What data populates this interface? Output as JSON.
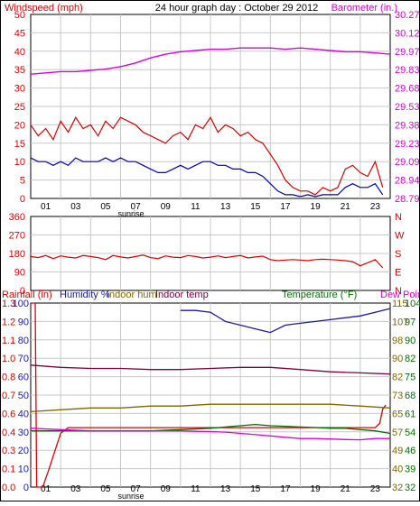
{
  "colors": {
    "windspeed": "#dd0000",
    "windgust": "#0000bb",
    "barometer": "#dd00dd",
    "direction": "#dd0000",
    "rainfall": "#dd0000",
    "humidity": "#1a1aa0",
    "indoor_hum": "#806600",
    "indoor_temp": "#800040",
    "temperature": "#007000",
    "dew_point": "#dd00dd",
    "grid": "#c8c8c8",
    "axis": "#000000"
  },
  "chart_data": [
    {
      "type": "line",
      "title": "24 hour graph day : October 29 2012",
      "ylabel": "Windspeed (mph)",
      "y2label": "Barometer (in.)",
      "ylim": [
        0,
        50
      ],
      "y2lim": [
        28.79,
        30.27
      ],
      "yticks": [
        "0",
        "5",
        "10",
        "15",
        "20",
        "25",
        "30",
        "35",
        "40",
        "45",
        "50"
      ],
      "y2ticks": [
        "28.79",
        "28.94",
        "29.09",
        "29.23",
        "29.38",
        "29.53",
        "29.68",
        "29.83",
        "29.97",
        "30.12",
        "30.27"
      ],
      "xticks": [
        "01",
        "03",
        "05",
        "07",
        "09",
        "11",
        "13",
        "15",
        "17",
        "19",
        "21",
        "23"
      ],
      "annotation": "sunrise",
      "grid": true,
      "series": [
        {
          "name": "Windspeed (mph)",
          "axis": "left",
          "x": [
            0,
            0.5,
            1,
            1.5,
            2,
            2.5,
            3,
            3.5,
            4,
            4.5,
            5,
            5.5,
            6,
            6.5,
            7,
            7.5,
            8,
            8.5,
            9,
            9.5,
            10,
            10.5,
            11,
            11.5,
            12,
            12.5,
            13,
            13.5,
            14,
            14.5,
            15,
            15.5,
            16,
            16.5,
            17,
            17.5,
            18,
            18.5,
            19,
            19.5,
            20,
            20.5,
            21,
            21.5,
            22,
            22.5,
            23,
            23.5
          ],
          "values": [
            20,
            17,
            19,
            16,
            21,
            18,
            22,
            19,
            20,
            17,
            21,
            19,
            22,
            21,
            20,
            18,
            17,
            16,
            15,
            17,
            18,
            16,
            20,
            19,
            22,
            18,
            20,
            19,
            17,
            18,
            16,
            15,
            12,
            9,
            5,
            3,
            2,
            2,
            1,
            3,
            2,
            3,
            8,
            9,
            7,
            6,
            10,
            3
          ]
        },
        {
          "name": "Wind gust",
          "axis": "left",
          "x": [
            0,
            0.5,
            1,
            1.5,
            2,
            2.5,
            3,
            3.5,
            4,
            4.5,
            5,
            5.5,
            6,
            6.5,
            7,
            7.5,
            8,
            8.5,
            9,
            9.5,
            10,
            10.5,
            11,
            11.5,
            12,
            12.5,
            13,
            13.5,
            14,
            14.5,
            15,
            15.5,
            16,
            16.5,
            17,
            17.5,
            18,
            18.5,
            19,
            19.5,
            20,
            20.5,
            21,
            21.5,
            22,
            22.5,
            23,
            23.5
          ],
          "values": [
            11,
            10,
            10,
            9,
            10,
            9,
            11,
            10,
            10,
            10,
            11,
            10,
            11,
            10,
            10,
            9,
            8,
            7,
            7,
            8,
            9,
            8,
            9,
            10,
            10,
            9,
            9,
            8,
            8,
            7,
            7,
            6,
            4,
            2,
            1,
            1,
            0.5,
            1,
            0.5,
            1,
            1,
            1,
            3,
            4,
            3,
            3,
            4,
            1
          ]
        },
        {
          "name": "Barometer (in.)",
          "axis": "right",
          "x": [
            0,
            1,
            2,
            3,
            4,
            5,
            6,
            7,
            8,
            9,
            10,
            11,
            12,
            13,
            14,
            15,
            16,
            17,
            18,
            19,
            20,
            21,
            22,
            23,
            24
          ],
          "values": [
            29.79,
            29.8,
            29.81,
            29.81,
            29.82,
            29.83,
            29.85,
            29.88,
            29.92,
            29.95,
            29.97,
            29.98,
            29.99,
            29.99,
            30.0,
            30.0,
            30.0,
            29.99,
            30.0,
            29.99,
            29.98,
            29.97,
            29.97,
            29.96,
            29.95
          ]
        }
      ]
    },
    {
      "type": "line",
      "ylim": [
        0,
        360
      ],
      "yticks": [
        "0",
        "90",
        "180",
        "270",
        "360"
      ],
      "y2ticks": [
        "N",
        "E",
        "S",
        "W",
        "N"
      ],
      "grid": true,
      "series": [
        {
          "name": "Wind direction",
          "x": [
            0,
            0.5,
            1,
            1.5,
            2,
            2.5,
            3,
            3.5,
            4,
            4.5,
            5,
            5.5,
            6,
            6.5,
            7,
            7.5,
            8,
            8.5,
            9,
            9.5,
            10,
            10.5,
            11,
            11.5,
            12,
            12.5,
            13,
            13.5,
            14,
            14.5,
            15,
            15.5,
            16,
            16.5,
            17,
            17.5,
            18,
            18.5,
            19,
            19.5,
            20,
            20.5,
            21,
            21.5,
            22,
            22.5,
            23,
            23.5
          ],
          "values": [
            165,
            160,
            170,
            155,
            168,
            162,
            158,
            170,
            165,
            160,
            150,
            170,
            163,
            158,
            165,
            172,
            160,
            155,
            168,
            162,
            160,
            170,
            165,
            158,
            162,
            168,
            160,
            165,
            170,
            158,
            163,
            167,
            150,
            145,
            148,
            150,
            148,
            145,
            150,
            152,
            150,
            148,
            145,
            140,
            120,
            135,
            150,
            110
          ]
        }
      ]
    },
    {
      "type": "line",
      "ylabel": "Rainfall (in)",
      "ylabel2": "Humidity %",
      "ylabel3": "Indoor hum",
      "ylabel4": "Indoor temp",
      "y2label": "Temperature (°F)",
      "y2label2": "Dew Point",
      "rainfall_ticks": [
        "0.0",
        "0.1",
        "0.3",
        "0.4",
        "0.6",
        "0.7",
        "0.8",
        "1.0",
        "1.1",
        "1.2",
        "1.3"
      ],
      "humidity_ticks": [
        "0",
        "10",
        "20",
        "30",
        "40",
        "50",
        "60",
        "70",
        "80",
        "90",
        "100"
      ],
      "indoor_ticks": [
        "32",
        "40",
        "49",
        "57",
        "65",
        "73",
        "82",
        "90",
        "98",
        "107",
        "115"
      ],
      "temp_ticks": [
        "32",
        "39",
        "46",
        "54",
        "61",
        "68",
        "75",
        "82",
        "90",
        "97",
        "104"
      ],
      "xticks": [
        "01",
        "03",
        "05",
        "07",
        "09",
        "11",
        "13",
        "15",
        "17",
        "19",
        "21",
        "23"
      ],
      "annotation": "sunrise",
      "grid": true,
      "series": [
        {
          "name": "Rainfall (in)",
          "scale": "rain",
          "x": [
            0,
            0.3,
            0.4,
            0.8,
            1.2,
            1.6,
            2,
            2.5,
            3,
            3.5,
            23,
            23.3,
            23.5,
            23.7
          ],
          "values": [
            1.3,
            1.3,
            0,
            0,
            0.12,
            0.25,
            0.38,
            0.42,
            0.42,
            0.42,
            0.42,
            0.45,
            0.55,
            0.58
          ]
        },
        {
          "name": "Humidity %",
          "scale": "humidity",
          "x": [
            10,
            11,
            12,
            13,
            14,
            15,
            15.5,
            16,
            16.5,
            17,
            18,
            19,
            20,
            21,
            22,
            23,
            24
          ],
          "values": [
            96,
            96,
            95,
            90,
            88,
            86,
            85,
            84,
            86,
            88,
            89,
            90,
            91,
            92,
            93,
            95,
            97
          ]
        },
        {
          "name": "Indoor hum",
          "scale": "humidity",
          "x": [
            0,
            2,
            4,
            6,
            8,
            10,
            12,
            14,
            16,
            18,
            20,
            22,
            24
          ],
          "values": [
            41,
            42,
            43,
            43,
            44,
            44,
            45,
            45,
            45,
            45,
            45,
            44,
            43
          ]
        },
        {
          "name": "Indoor temp",
          "scale": "indoor",
          "x": [
            0,
            2,
            4,
            6,
            8,
            10,
            12,
            14,
            16,
            18,
            20,
            22,
            24
          ],
          "values": [
            87,
            86,
            85.5,
            85.5,
            85,
            85,
            85.5,
            86,
            86,
            85,
            84,
            83.5,
            83
          ]
        },
        {
          "name": "Temperature (°F)",
          "scale": "temp",
          "x": [
            0,
            2,
            4,
            6,
            8,
            10,
            12,
            13,
            14,
            15,
            16,
            17,
            18,
            19,
            20,
            21,
            22,
            23,
            23.5,
            24
          ],
          "values": [
            54,
            54,
            54,
            54,
            54,
            54.5,
            55,
            55.5,
            56,
            56.5,
            56,
            55.8,
            55.5,
            55.3,
            55,
            55,
            54.5,
            54,
            53.5,
            53
          ]
        },
        {
          "name": "Dew Point",
          "scale": "temp",
          "x": [
            0,
            2,
            4,
            6,
            8,
            10,
            11,
            12,
            13,
            14,
            15,
            16,
            17,
            18,
            19,
            20,
            21,
            22,
            23,
            23.5,
            24
          ],
          "values": [
            55,
            54.5,
            54,
            54,
            54,
            54,
            53.8,
            53.7,
            53.5,
            53,
            52.5,
            52,
            51.5,
            51,
            51,
            50.8,
            50.6,
            50.5,
            51,
            51,
            51
          ]
        }
      ]
    }
  ]
}
